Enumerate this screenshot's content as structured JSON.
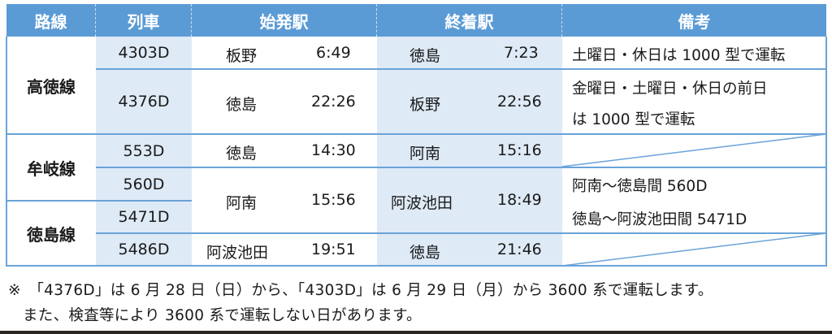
{
  "headers": [
    "路線",
    "列車",
    "始発駅",
    "終着駅",
    "備考"
  ],
  "lines": [
    "高徳線",
    "牟岐線",
    "徳島線"
  ],
  "trains": [
    "4303D",
    "4376D",
    "553D",
    "560D",
    "5471D",
    "5486D"
  ],
  "departures": [
    {
      "station": "板野",
      "time": "6:49"
    },
    {
      "station": "徳島",
      "time": "22:26"
    },
    {
      "station": "徳島",
      "time": "14:30"
    },
    {
      "station": "阿南",
      "time": "15:56"
    },
    {
      "station": "阿波池田",
      "time": "19:51"
    }
  ],
  "arrivals": [
    {
      "station": "徳島",
      "time": "7:23"
    },
    {
      "station": "板野",
      "time": "22:56"
    },
    {
      "station": "阿南",
      "time": "15:16"
    },
    {
      "station": "阿波池田",
      "time": "18:49"
    },
    {
      "station": "徳島",
      "time": "21:46"
    }
  ],
  "remarks": {
    "r1": "土曜日・休日は 1000 型で運転",
    "r2_line1": "金曜日・土曜日・休日の前日",
    "r2_line2": "は 1000 型で運転",
    "r4_line1": "阿南～徳島間 560D",
    "r4_line2": "徳島～阿波池田間 5471D"
  },
  "notes": [
    "※　「4376D」は 6 月 28 日（日）から、「4303D」は 6 月 29 日（月）から 3600 系で運転します。",
    "また、検査等により 3600 系で運転しない日があります。"
  ],
  "colors": {
    "header": "#5b9bd5",
    "shade": "#deeaf6",
    "border": "#6aa3d8"
  }
}
